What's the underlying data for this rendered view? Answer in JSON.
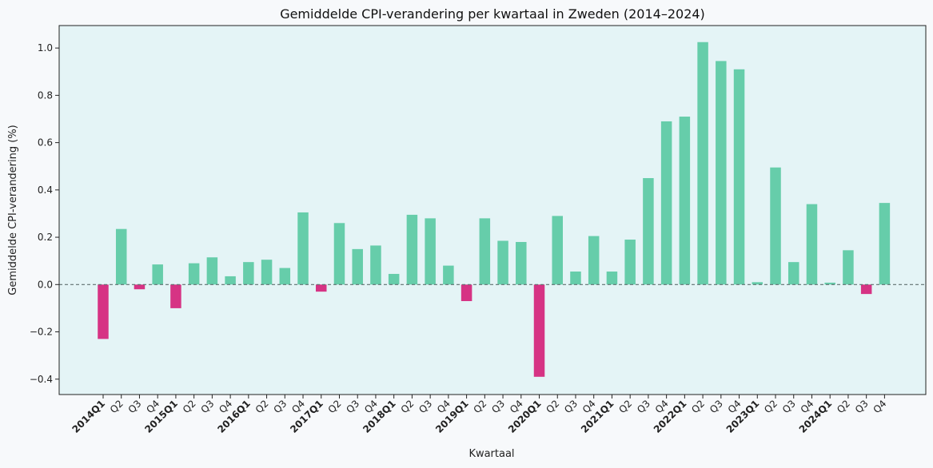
{
  "colors": {
    "positive": "#66cdaa",
    "negative": "#d63384",
    "plot_bg": "#e4f4f6",
    "page_bg": "#f7f9fb",
    "zero_line": "#607070"
  },
  "chart_data": {
    "type": "bar",
    "title": "Gemiddelde CPI-verandering per kwartaal in Zweden (2014–2024)",
    "xlabel": "Kwartaal",
    "ylabel": "Gemiddelde CPI-verandering (%)",
    "ylim": [
      -0.465,
      1.095
    ],
    "yticks": [
      -0.4,
      -0.2,
      0.0,
      0.2,
      0.4,
      0.6,
      0.8,
      1.0
    ],
    "ytick_labels": [
      "−0.4",
      "−0.2",
      "0.0",
      "0.2",
      "0.4",
      "0.6",
      "0.8",
      "1.0"
    ],
    "grid": false,
    "zero_line": "dashed",
    "categories": [
      "2014Q1",
      "Q2",
      "Q3",
      "Q4",
      "2015Q1",
      "Q2",
      "Q3",
      "Q4",
      "2016Q1",
      "Q2",
      "Q3",
      "Q4",
      "2017Q1",
      "Q2",
      "Q3",
      "Q4",
      "2018Q1",
      "Q2",
      "Q3",
      "Q4",
      "2019Q1",
      "Q2",
      "Q3",
      "Q4",
      "2020Q1",
      "Q2",
      "Q3",
      "Q4",
      "2021Q1",
      "Q2",
      "Q3",
      "Q4",
      "2022Q1",
      "Q2",
      "Q3",
      "Q4",
      "2023Q1",
      "Q2",
      "Q3",
      "Q4",
      "2024Q1",
      "Q2",
      "Q3",
      "Q4"
    ],
    "bold_categories": [
      "2014Q1",
      "2015Q1",
      "2016Q1",
      "2017Q1",
      "2018Q1",
      "2019Q1",
      "2020Q1",
      "2021Q1",
      "2022Q1",
      "2023Q1",
      "2024Q1"
    ],
    "values": [
      -0.23,
      0.235,
      -0.02,
      0.085,
      -0.1,
      0.09,
      0.115,
      0.035,
      0.095,
      0.105,
      0.07,
      0.305,
      -0.03,
      0.26,
      0.15,
      0.165,
      0.045,
      0.295,
      0.28,
      0.08,
      -0.07,
      0.28,
      0.185,
      0.18,
      -0.39,
      0.29,
      0.055,
      0.205,
      0.055,
      0.19,
      0.45,
      0.69,
      0.71,
      1.025,
      0.945,
      0.91,
      0.01,
      0.495,
      0.095,
      0.34,
      0.008,
      0.145,
      -0.04,
      0.345
    ]
  }
}
